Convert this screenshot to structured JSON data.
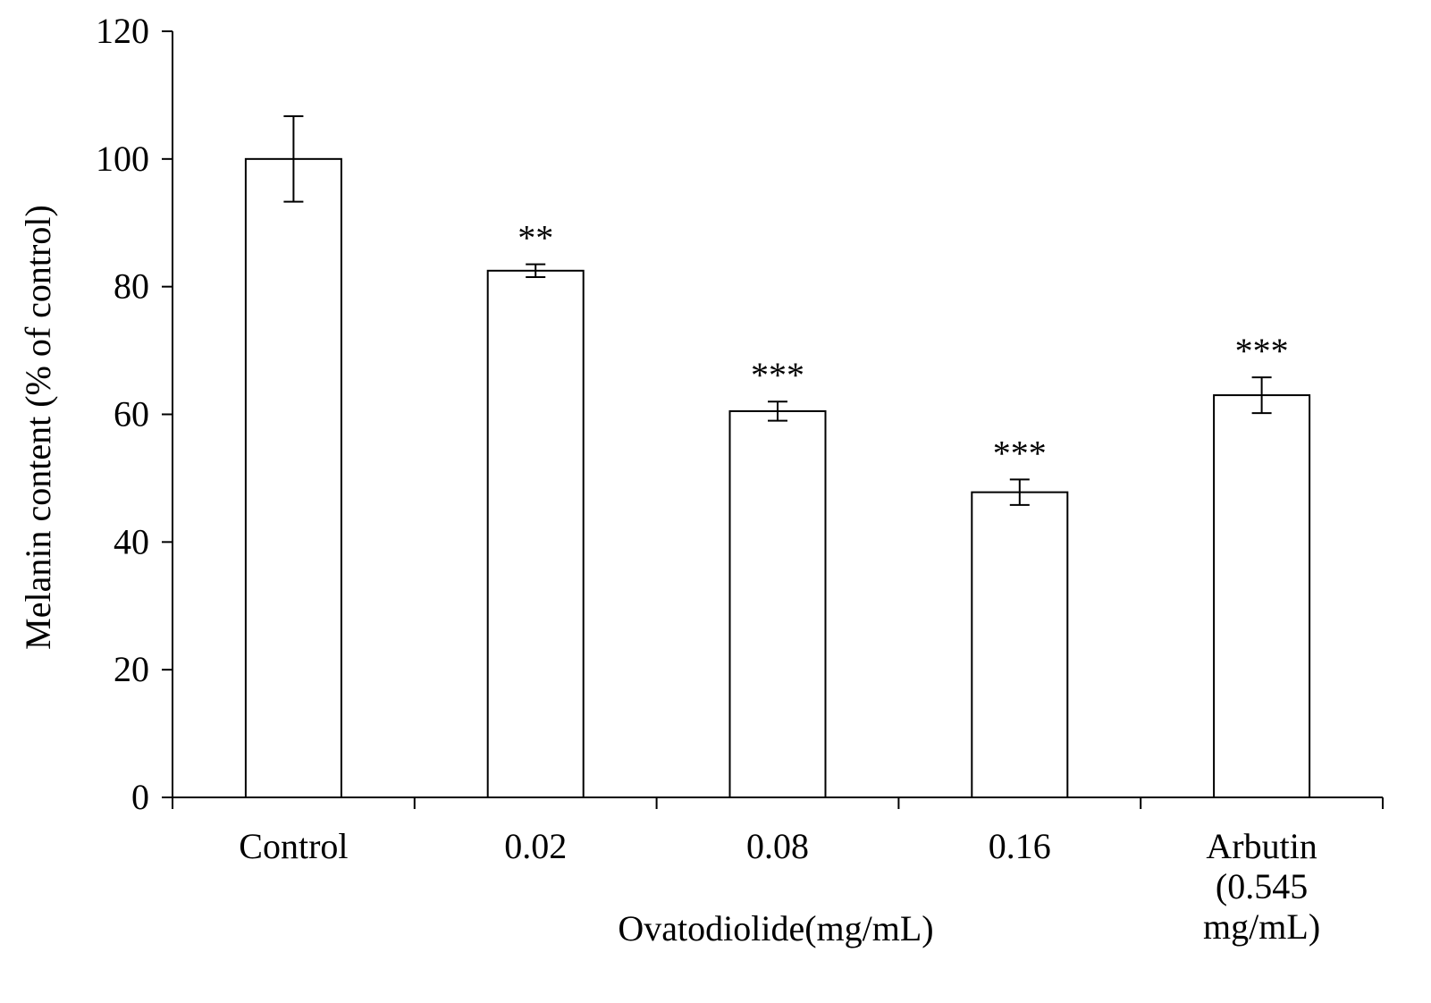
{
  "chart_data": {
    "type": "bar",
    "title": "",
    "xlabel": "Ovatodiolide(mg/mL)",
    "ylabel": "Melanin  content (% of control)",
    "ylim": [
      0,
      120
    ],
    "yticks": [
      0,
      20,
      40,
      60,
      80,
      100,
      120
    ],
    "ytick_labels": [
      "0",
      "20",
      "40",
      "60",
      "80",
      "100",
      "120"
    ],
    "grid": false,
    "categories": [
      {
        "label_lines": [
          "Control"
        ]
      },
      {
        "label_lines": [
          "0.02"
        ]
      },
      {
        "label_lines": [
          "0.08"
        ]
      },
      {
        "label_lines": [
          "0.16"
        ]
      },
      {
        "label_lines": [
          "Arbutin",
          "(0.545",
          "mg/mL)"
        ]
      }
    ],
    "series": [
      {
        "name": "Melanin content",
        "values": [
          100,
          82.5,
          60.5,
          47.8,
          63.0
        ],
        "errors": [
          6.7,
          1.0,
          1.5,
          2.0,
          2.8
        ],
        "significance": [
          "",
          "**",
          "***",
          "***",
          "***"
        ]
      }
    ],
    "colors": {
      "bar_fill": "#ffffff",
      "stroke": "#000000"
    }
  }
}
